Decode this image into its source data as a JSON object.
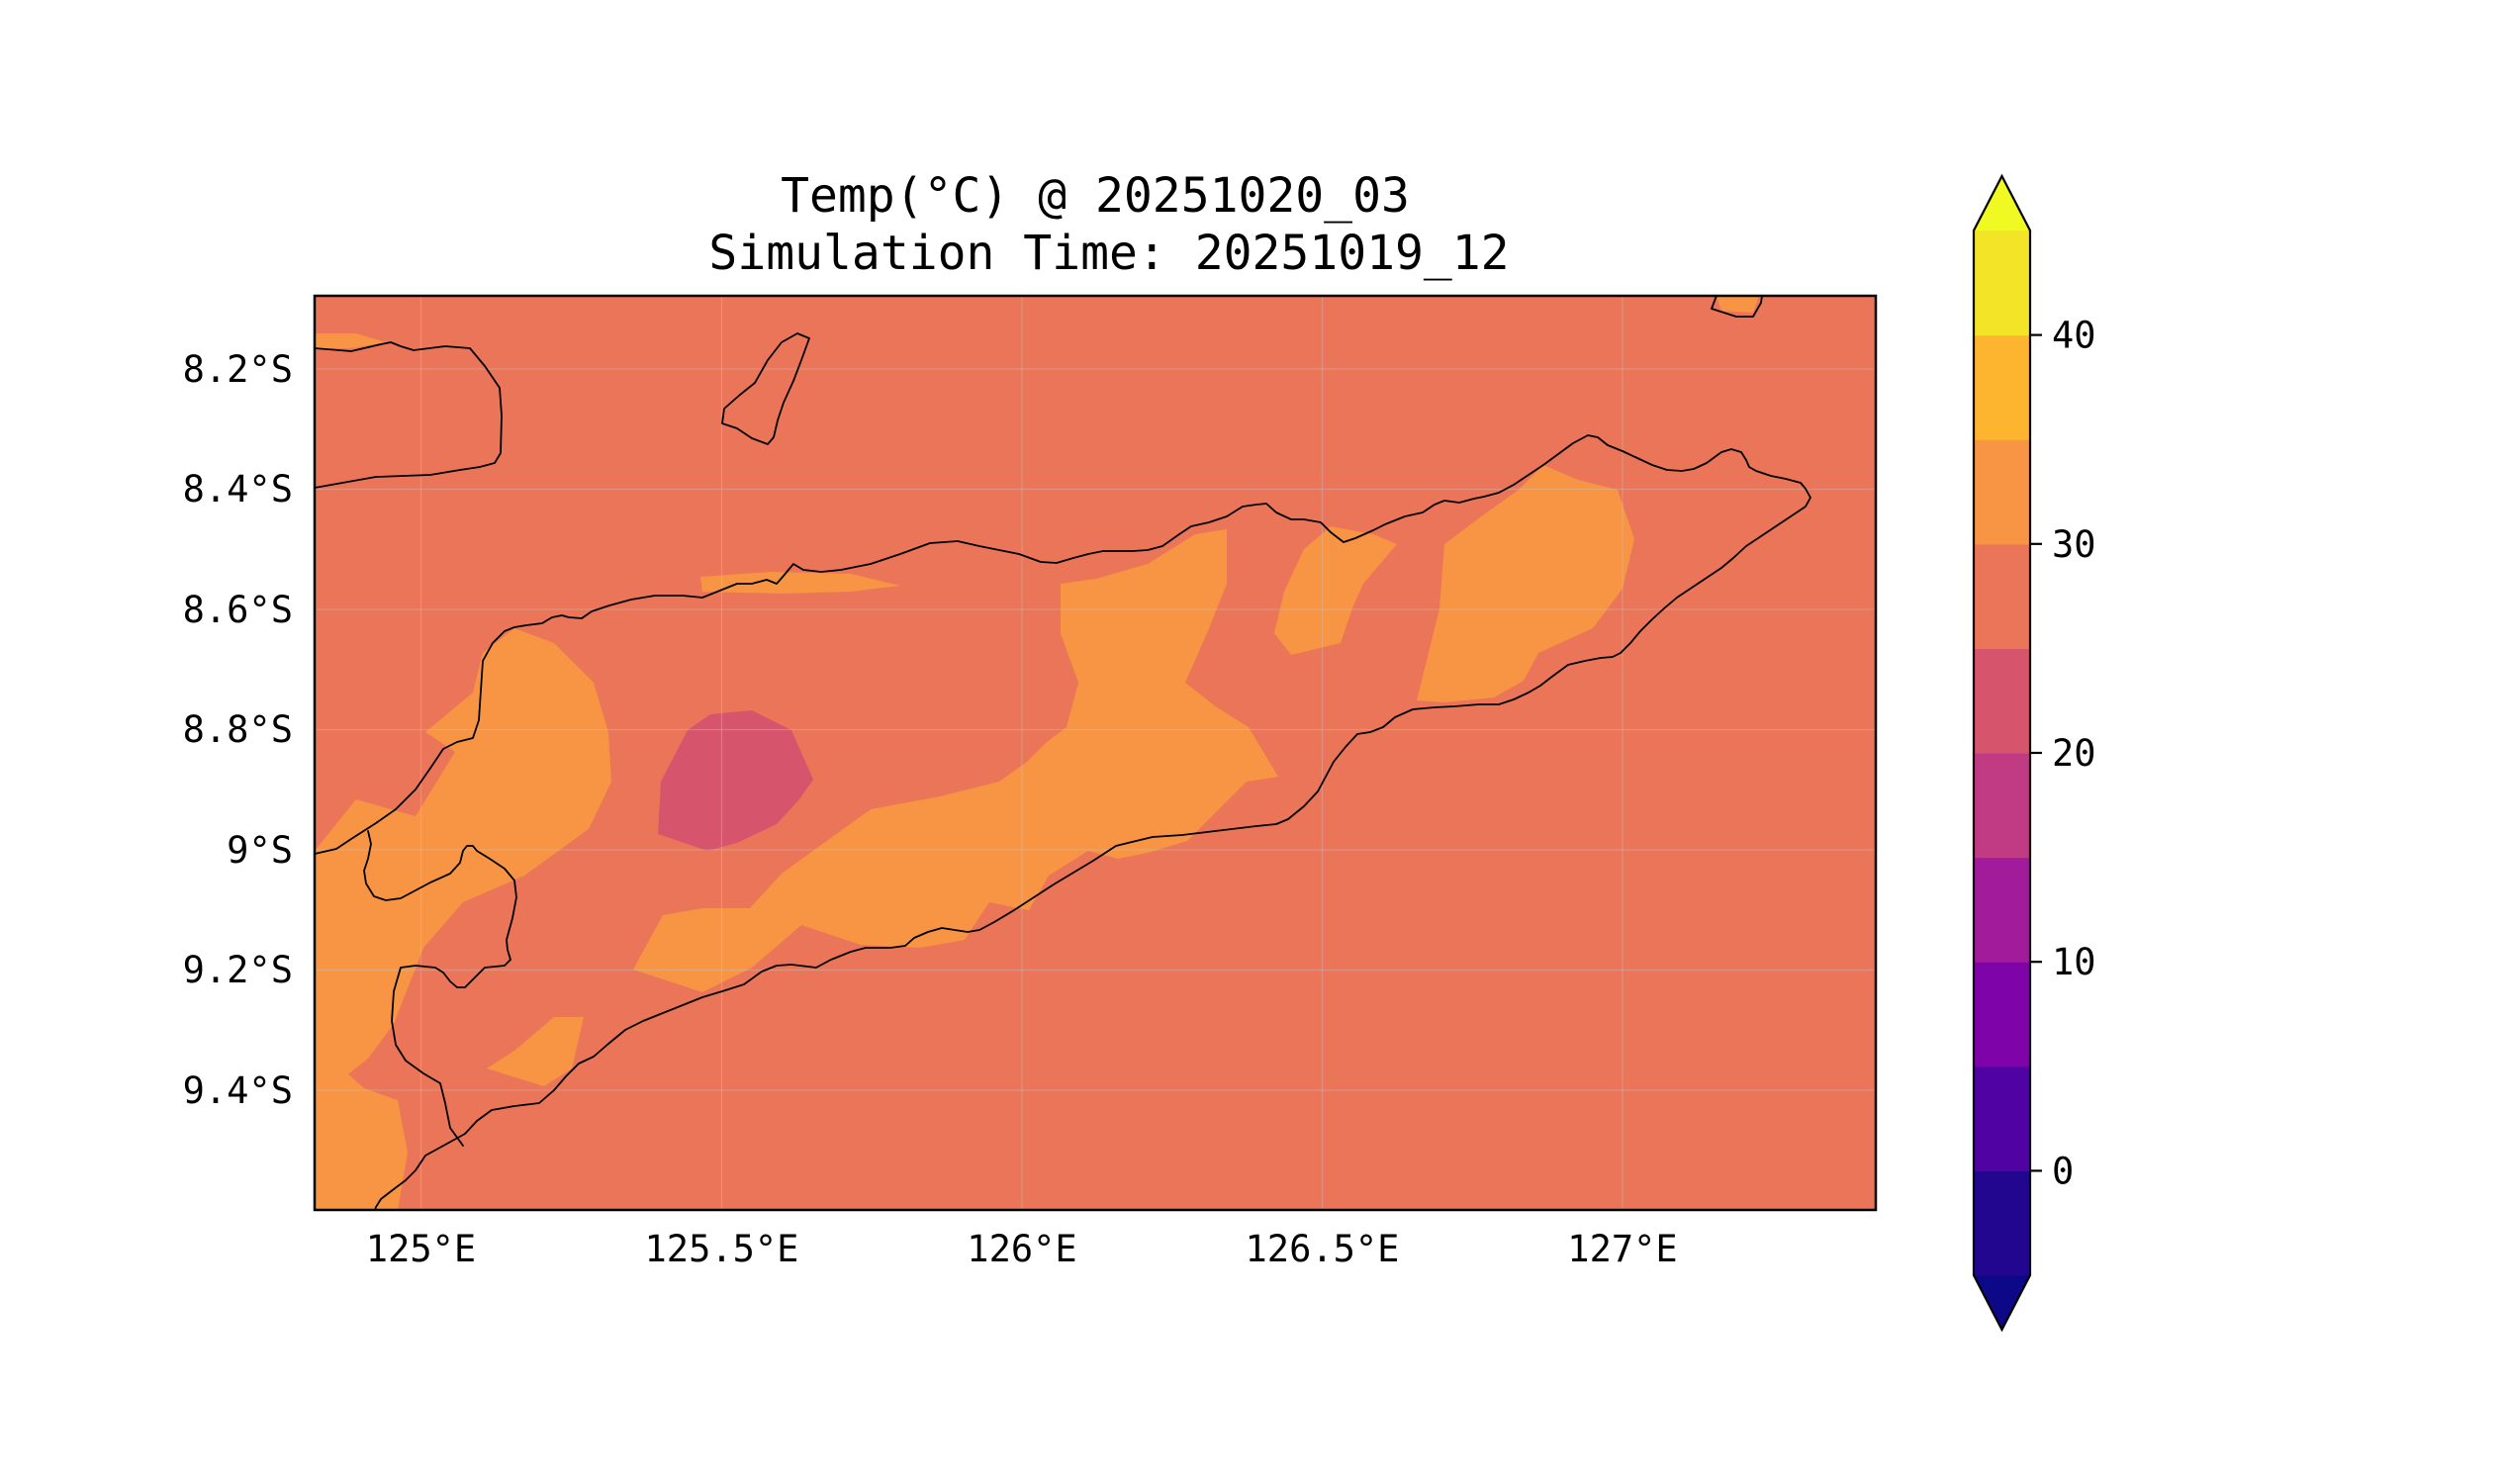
{
  "title": {
    "line1": "Temp(°C) @ 20251020_03",
    "line2": "Simulation Time: 20251019_12"
  },
  "map": {
    "lon_range": [
      124.82,
      127.42
    ],
    "lat_range": [
      -9.6,
      -8.08
    ],
    "lon_ticks": [
      {
        "value": 125.0,
        "label": "125°E"
      },
      {
        "value": 125.5,
        "label": "125.5°E"
      },
      {
        "value": 126.0,
        "label": "126°E"
      },
      {
        "value": 126.5,
        "label": "126.5°E"
      },
      {
        "value": 127.0,
        "label": "127°E"
      }
    ],
    "lat_ticks": [
      {
        "value": -8.2,
        "label": "8.2°S"
      },
      {
        "value": -8.4,
        "label": "8.4°S"
      },
      {
        "value": -8.6,
        "label": "8.6°S"
      },
      {
        "value": -8.8,
        "label": "8.8°S"
      },
      {
        "value": -9.0,
        "label": "9°S"
      },
      {
        "value": -9.2,
        "label": "9.2°S"
      },
      {
        "value": -9.4,
        "label": "9.4°S"
      }
    ],
    "gridlines": true,
    "background_band": {
      "range": [
        25,
        30
      ],
      "color": "#eb7558"
    }
  },
  "colorbar": {
    "levels": [
      -5,
      0,
      5,
      10,
      15,
      20,
      25,
      30,
      35,
      40,
      45
    ],
    "colors": [
      "#220690",
      "#5102a3",
      "#7e03a8",
      "#a11b9b",
      "#c13a84",
      "#d6556d",
      "#eb7558",
      "#f79544",
      "#fdb42f",
      "#f3e428"
    ],
    "under_color": "#0d0887",
    "over_color": "#f0f921",
    "extend": "both",
    "ticks": [
      {
        "value": 0,
        "label": "0"
      },
      {
        "value": 10,
        "label": "10"
      },
      {
        "value": 20,
        "label": "20"
      },
      {
        "value": 30,
        "label": "30"
      },
      {
        "value": 40,
        "label": "40"
      }
    ]
  }
}
